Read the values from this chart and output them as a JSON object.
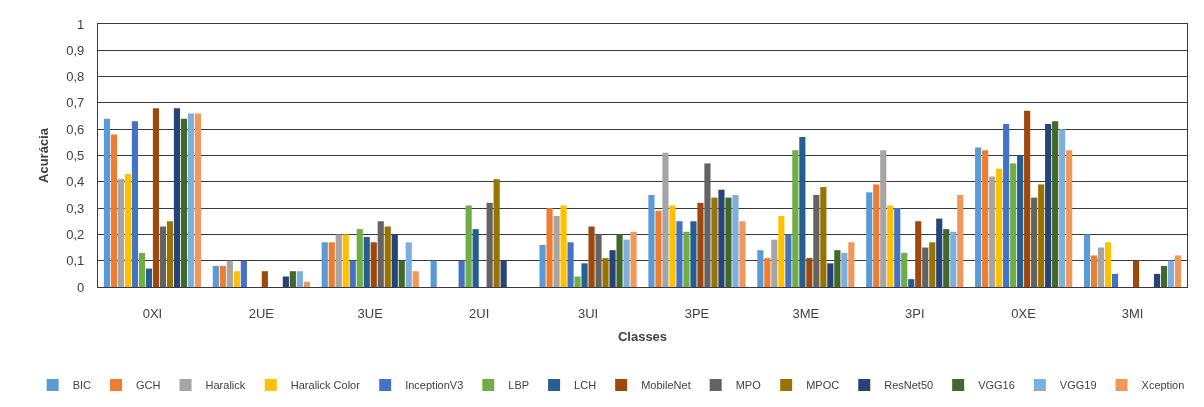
{
  "chart_data": {
    "type": "bar",
    "xlabel": "Classes",
    "ylabel": "Acurácia",
    "categories": [
      "0XI",
      "2UE",
      "3UE",
      "2UI",
      "3UI",
      "3PE",
      "3ME",
      "3PI",
      "0XE",
      "3MI"
    ],
    "ylim": [
      0,
      1
    ],
    "yticks": [
      0,
      {
        "value": 0.1,
        "label": "0,1"
      },
      {
        "value": 0.2,
        "label": "0,2"
      },
      {
        "value": 0.3,
        "label": "0,3"
      },
      {
        "value": 0.4,
        "label": "0,4"
      },
      {
        "value": 0.5,
        "label": "0,5"
      },
      {
        "value": 0.6,
        "label": "0,6"
      },
      {
        "value": 0.7,
        "label": "0,7"
      },
      {
        "value": 0.8,
        "label": "0,8"
      },
      {
        "value": 0.9,
        "label": "0,9"
      },
      1
    ],
    "grid": "y",
    "legend": "bottom",
    "series": [
      {
        "name": "BIC",
        "color": "#5b9bd5",
        "values": [
          0.64,
          0.08,
          0.17,
          0.1,
          0.16,
          0.35,
          0.14,
          0.36,
          0.53,
          0.2
        ]
      },
      {
        "name": "GCH",
        "color": "#ed7d31",
        "values": [
          0.58,
          0.08,
          0.17,
          null,
          0.3,
          0.29,
          0.11,
          0.39,
          0.52,
          0.12
        ]
      },
      {
        "name": "Haralick",
        "color": "#a5a5a5",
        "values": [
          0.41,
          0.1,
          0.2,
          null,
          0.27,
          0.51,
          0.18,
          0.52,
          0.42,
          0.15
        ]
      },
      {
        "name": "Haralick Color",
        "color": "#ffc000",
        "values": [
          0.43,
          0.06,
          0.2,
          null,
          0.31,
          0.31,
          0.27,
          0.31,
          0.45,
          0.17
        ]
      },
      {
        "name": "InceptionV3",
        "color": "#4472c4",
        "values": [
          0.63,
          0.1,
          0.1,
          0.1,
          0.17,
          0.25,
          0.2,
          0.3,
          0.62,
          0.05
        ]
      },
      {
        "name": "LBP",
        "color": "#70ad47",
        "values": [
          0.13,
          null,
          0.22,
          0.31,
          0.04,
          0.21,
          0.52,
          0.13,
          0.47,
          null
        ]
      },
      {
        "name": "LCH",
        "color": "#255e91",
        "values": [
          0.07,
          null,
          0.19,
          0.22,
          0.09,
          0.25,
          0.57,
          0.03,
          0.5,
          null
        ]
      },
      {
        "name": "MobileNet",
        "color": "#9e480e",
        "values": [
          0.68,
          0.06,
          0.17,
          null,
          0.23,
          0.32,
          0.11,
          0.25,
          0.67,
          0.1
        ]
      },
      {
        "name": "MPO",
        "color": "#636363",
        "values": [
          0.23,
          null,
          0.25,
          0.32,
          0.2,
          0.47,
          0.35,
          0.15,
          0.34,
          null
        ]
      },
      {
        "name": "MPOC",
        "color": "#997300",
        "values": [
          0.25,
          null,
          0.23,
          0.41,
          0.11,
          0.34,
          0.38,
          0.17,
          0.39,
          null
        ]
      },
      {
        "name": "ResNet50",
        "color": "#264478",
        "values": [
          0.68,
          0.04,
          0.2,
          0.1,
          0.14,
          0.37,
          0.09,
          0.26,
          0.62,
          0.05
        ]
      },
      {
        "name": "VGG16",
        "color": "#43682b",
        "values": [
          0.64,
          0.06,
          0.1,
          null,
          0.2,
          0.34,
          0.14,
          0.22,
          0.63,
          0.08
        ]
      },
      {
        "name": "VGG19",
        "color": "#7cafdd",
        "values": [
          0.66,
          0.06,
          0.17,
          null,
          0.18,
          0.35,
          0.13,
          0.21,
          0.6,
          0.1
        ]
      },
      {
        "name": "Xception",
        "color": "#f1975a",
        "values": [
          0.66,
          0.02,
          0.06,
          null,
          0.21,
          0.25,
          0.17,
          0.35,
          0.52,
          0.12
        ]
      }
    ]
  }
}
